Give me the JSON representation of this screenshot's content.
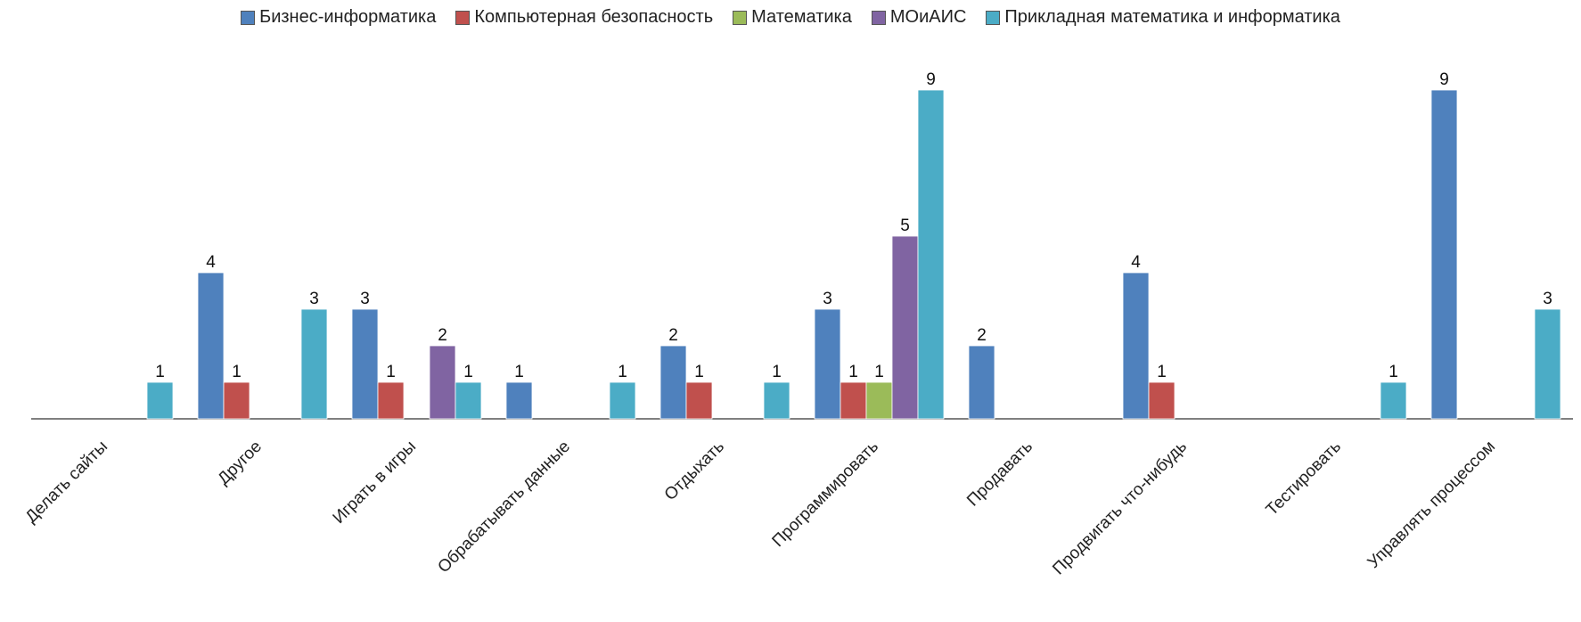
{
  "chart_data": {
    "type": "bar",
    "title": "",
    "xlabel": "",
    "ylabel": "",
    "ylim": [
      0,
      9
    ],
    "grid": false,
    "legend_position": "top",
    "categories": [
      "Делать сайты",
      "Другое",
      "Играть в игры",
      "Обрабатывать данные",
      "Отдыхать",
      "Программировать",
      "Продавать",
      "Продвигать что-нибудь",
      "Тестировать",
      "Управлять процессом"
    ],
    "series": [
      {
        "name": "Бизнес-информатика",
        "color": "#4F81BD",
        "values": [
          null,
          4,
          3,
          1,
          2,
          3,
          2,
          4,
          null,
          9
        ]
      },
      {
        "name": "Компьютерная безопасность",
        "color": "#C0504D",
        "values": [
          null,
          1,
          1,
          null,
          1,
          1,
          null,
          1,
          null,
          null
        ]
      },
      {
        "name": "Математика",
        "color": "#9BBB59",
        "values": [
          null,
          null,
          null,
          null,
          null,
          1,
          null,
          null,
          null,
          null
        ]
      },
      {
        "name": "МОиАИС",
        "color": "#8064A2",
        "values": [
          null,
          null,
          2,
          null,
          null,
          5,
          null,
          null,
          null,
          null
        ]
      },
      {
        "name": "Прикладная математика и информатика",
        "color": "#4BACC6",
        "values": [
          1,
          3,
          1,
          1,
          1,
          9,
          null,
          null,
          1,
          3
        ]
      }
    ]
  }
}
